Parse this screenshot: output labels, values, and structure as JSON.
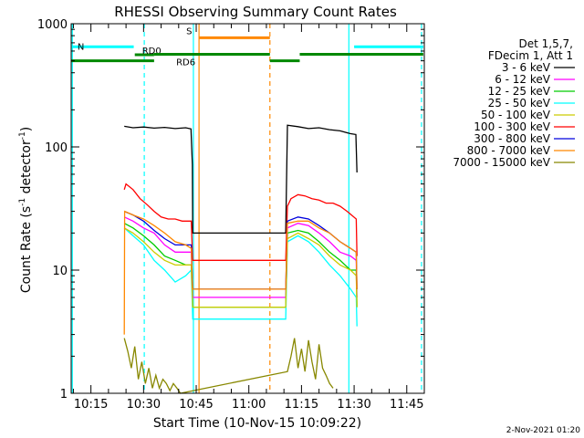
{
  "chart_data": {
    "type": "line",
    "title": "RHESSI Observing Summary Count Rates",
    "xlabel": "Start Time (10-Nov-15 10:09:22)",
    "ylabel_main": "Count Rate (s",
    "ylabel_sup1": "-1",
    "ylabel_mid": " detector",
    "ylabel_sup2": "-1",
    "ylabel_end": ")",
    "y_scale": "log",
    "ylim": [
      1,
      1000
    ],
    "xlim_minutes": [
      609.37,
      710.0
    ],
    "x_ticks": [
      {
        "label": "10:15",
        "minute": 615
      },
      {
        "label": "10:30",
        "minute": 630
      },
      {
        "label": "10:45",
        "minute": 645
      },
      {
        "label": "11:00",
        "minute": 660
      },
      {
        "label": "11:15",
        "minute": 675
      },
      {
        "label": "11:30",
        "minute": 690
      },
      {
        "label": "11:45",
        "minute": 705
      }
    ],
    "y_ticks": [
      {
        "label": "1",
        "value": 1
      },
      {
        "label": "10",
        "value": 10
      },
      {
        "label": "100",
        "value": 100
      },
      {
        "label": "1000",
        "value": 1000
      }
    ],
    "legend": {
      "header1": "Det 1,5,7,",
      "header2": "FDecim 1, Att 1",
      "placement": "right"
    },
    "series": [
      {
        "name": "3 - 6 keV",
        "color": "#000000",
        "points": [
          [
            624.5,
            147
          ],
          [
            627,
            143
          ],
          [
            630,
            145
          ],
          [
            633,
            142
          ],
          [
            636,
            144
          ],
          [
            639,
            141
          ],
          [
            642,
            143
          ],
          [
            643.5,
            140
          ],
          [
            643.9,
            72
          ],
          [
            644,
            20
          ],
          [
            670.5,
            20
          ],
          [
            671,
            150
          ],
          [
            674,
            146
          ],
          [
            677,
            141
          ],
          [
            680,
            143
          ],
          [
            683,
            138
          ],
          [
            686,
            135
          ],
          [
            689,
            128
          ],
          [
            690.5,
            126
          ],
          [
            690.8,
            62
          ]
        ]
      },
      {
        "name": "6 - 12 keV",
        "color": "#ff00ff",
        "points": [
          [
            624.5,
            27
          ],
          [
            627,
            25
          ],
          [
            630,
            22
          ],
          [
            633,
            20
          ],
          [
            636,
            16
          ],
          [
            639,
            14
          ],
          [
            642,
            14
          ],
          [
            643.6,
            14
          ],
          [
            644,
            6
          ],
          [
            670.5,
            6
          ],
          [
            671,
            22
          ],
          [
            674,
            24
          ],
          [
            677,
            23
          ],
          [
            680,
            20
          ],
          [
            683,
            17
          ],
          [
            686,
            14
          ],
          [
            689,
            13
          ],
          [
            690.6,
            12
          ],
          [
            690.8,
            6
          ]
        ]
      },
      {
        "name": "12 - 25 keV",
        "color": "#00cc00",
        "points": [
          [
            624.5,
            24
          ],
          [
            627,
            22
          ],
          [
            630,
            19
          ],
          [
            633,
            16
          ],
          [
            636,
            13
          ],
          [
            639,
            12
          ],
          [
            642,
            11
          ],
          [
            643.6,
            11
          ],
          [
            644,
            5
          ],
          [
            670.5,
            5
          ],
          [
            671,
            20
          ],
          [
            674,
            21
          ],
          [
            677,
            20
          ],
          [
            680,
            17
          ],
          [
            683,
            14
          ],
          [
            686,
            12
          ],
          [
            689,
            10
          ],
          [
            690.6,
            10
          ],
          [
            690.8,
            5
          ]
        ]
      },
      {
        "name": "25 - 50 keV",
        "color": "#00ffff",
        "points": [
          [
            624.5,
            22
          ],
          [
            627,
            19
          ],
          [
            630,
            16
          ],
          [
            633,
            12
          ],
          [
            636,
            10
          ],
          [
            639,
            8
          ],
          [
            642,
            9
          ],
          [
            643.6,
            10
          ],
          [
            644,
            4
          ],
          [
            670.5,
            4
          ],
          [
            671,
            17
          ],
          [
            674,
            19
          ],
          [
            677,
            17
          ],
          [
            680,
            14
          ],
          [
            683,
            11
          ],
          [
            686,
            9
          ],
          [
            689,
            7
          ],
          [
            690.6,
            6
          ],
          [
            690.8,
            3.5
          ]
        ]
      },
      {
        "name": "50 - 100 keV",
        "color": "#cccc00",
        "points": [
          [
            624.5,
            22
          ],
          [
            627,
            20
          ],
          [
            630,
            17
          ],
          [
            633,
            14
          ],
          [
            636,
            12
          ],
          [
            639,
            11
          ],
          [
            642,
            11
          ],
          [
            643.6,
            11
          ],
          [
            644,
            5
          ],
          [
            670.5,
            5
          ],
          [
            671,
            18
          ],
          [
            674,
            20
          ],
          [
            677,
            18
          ],
          [
            680,
            16
          ],
          [
            683,
            13
          ],
          [
            686,
            11
          ],
          [
            689,
            10
          ],
          [
            690.6,
            9
          ],
          [
            690.8,
            5
          ]
        ]
      },
      {
        "name": "100 - 300 keV",
        "color": "#ff0000",
        "points": [
          [
            624.5,
            45
          ],
          [
            625,
            50
          ],
          [
            627,
            45
          ],
          [
            629,
            38
          ],
          [
            631,
            34
          ],
          [
            633,
            30
          ],
          [
            635,
            27
          ],
          [
            637,
            26
          ],
          [
            639,
            26
          ],
          [
            641,
            25
          ],
          [
            643.6,
            25
          ],
          [
            644,
            12
          ],
          [
            670.5,
            12
          ],
          [
            671,
            33
          ],
          [
            672,
            38
          ],
          [
            674,
            41
          ],
          [
            676,
            40
          ],
          [
            678,
            38
          ],
          [
            680,
            37
          ],
          [
            682,
            35
          ],
          [
            684,
            35
          ],
          [
            686,
            33
          ],
          [
            688,
            30
          ],
          [
            690.6,
            26
          ],
          [
            690.8,
            13
          ]
        ]
      },
      {
        "name": "300 - 800 keV",
        "color": "#0000dd",
        "points": [
          [
            624.5,
            30
          ],
          [
            627,
            28
          ],
          [
            630,
            25
          ],
          [
            633,
            21
          ],
          [
            636,
            18
          ],
          [
            639,
            16
          ],
          [
            642,
            16
          ],
          [
            643.6,
            16
          ],
          [
            644,
            7
          ],
          [
            670.5,
            7
          ],
          [
            671,
            25
          ],
          [
            674,
            27
          ],
          [
            677,
            26
          ],
          [
            680,
            23
          ],
          [
            683,
            20
          ],
          [
            686,
            17
          ],
          [
            689,
            15
          ],
          [
            690.6,
            14
          ],
          [
            690.8,
            7
          ]
        ]
      },
      {
        "name": "800 - 7000 keV",
        "color": "#ff8800",
        "points": [
          [
            624.5,
            3
          ],
          [
            624.6,
            30
          ],
          [
            627,
            28
          ],
          [
            630,
            26
          ],
          [
            633,
            23
          ],
          [
            636,
            20
          ],
          [
            639,
            17
          ],
          [
            642,
            16
          ],
          [
            643.6,
            15
          ],
          [
            644,
            7
          ],
          [
            670.5,
            7
          ],
          [
            671,
            24
          ],
          [
            674,
            25
          ],
          [
            677,
            25
          ],
          [
            680,
            22
          ],
          [
            683,
            20
          ],
          [
            686,
            17
          ],
          [
            689,
            15
          ],
          [
            690.6,
            14
          ],
          [
            690.8,
            7
          ]
        ]
      },
      {
        "name": "7000 - 15000 keV",
        "color": "#888800",
        "points": [
          [
            624.5,
            2.8
          ],
          [
            625.5,
            2.2
          ],
          [
            626.5,
            1.6
          ],
          [
            627.5,
            2.4
          ],
          [
            628.5,
            1.3
          ],
          [
            629.5,
            1.8
          ],
          [
            630.5,
            1.2
          ],
          [
            631.5,
            1.6
          ],
          [
            632.5,
            1.1
          ],
          [
            633.5,
            1.4
          ],
          [
            634.5,
            1.1
          ],
          [
            635.5,
            1.3
          ],
          [
            636.5,
            1.2
          ],
          [
            637.5,
            1.05
          ],
          [
            638.5,
            1.2
          ],
          [
            639.5,
            1.1
          ],
          [
            640.5,
            1.0
          ],
          [
            671,
            1.5
          ],
          [
            672,
            2.0
          ],
          [
            673,
            2.8
          ],
          [
            674,
            1.6
          ],
          [
            675,
            2.3
          ],
          [
            676,
            1.5
          ],
          [
            677,
            2.7
          ],
          [
            678,
            1.8
          ],
          [
            679,
            1.3
          ],
          [
            680,
            2.5
          ],
          [
            681,
            1.6
          ],
          [
            682,
            1.4
          ],
          [
            683,
            1.2
          ],
          [
            684,
            1.1
          ]
        ]
      }
    ],
    "segments": [
      {
        "label": "N",
        "color": "#00ffff",
        "y": 650,
        "ranges": [
          [
            609.6,
            627.2
          ],
          [
            690,
            709.7
          ]
        ]
      },
      {
        "label": "RD0",
        "color": "#008800",
        "y": 560,
        "ranges": [
          [
            627.5,
            633
          ]
        ]
      },
      {
        "label": "RD6",
        "color": "#008800",
        "y": 500,
        "ranges": [
          [
            609.4,
            633
          ]
        ]
      },
      {
        "label": "",
        "color": "#008800",
        "y": 565,
        "ranges": [
          [
            633,
            666
          ],
          [
            674.5,
            709.7
          ]
        ]
      },
      {
        "label": "",
        "color": "#008800",
        "y": 500,
        "ranges": [
          [
            666,
            674.5
          ]
        ]
      },
      {
        "label": "S",
        "color": "#ff8800",
        "y": 770,
        "ranges": [
          [
            645.8,
            666
          ]
        ]
      }
    ],
    "vlines": [
      {
        "minute": 609.7,
        "color": "#00ffff",
        "style": "solid"
      },
      {
        "minute": 630.2,
        "color": "#00ffff",
        "style": "dashed"
      },
      {
        "minute": 644.2,
        "color": "#00ffff",
        "style": "solid"
      },
      {
        "minute": 645.8,
        "color": "#ff8800",
        "style": "solid"
      },
      {
        "minute": 666,
        "color": "#ff8800",
        "style": "dashed"
      },
      {
        "minute": 688.5,
        "color": "#00ffff",
        "style": "solid"
      },
      {
        "minute": 709.2,
        "color": "#00ffff",
        "style": "dashed"
      }
    ]
  },
  "footer_date": "2-Nov-2021 01:20"
}
